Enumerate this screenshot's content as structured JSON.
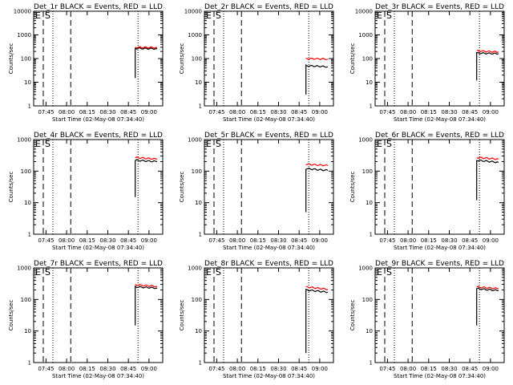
{
  "chart_data": [
    {
      "type": "line",
      "title": "Det_1r BLACK = Events, RED = LLD",
      "xlabel": "Start Time (02-May-08 07:34:40)",
      "ylabel": "Counts/sec",
      "scale": "log",
      "ylim": [
        1,
        10000
      ],
      "ytick_labels": [
        "1",
        "10",
        "100",
        "1000",
        "10000"
      ],
      "xlim": [
        "07:36",
        "09:10"
      ],
      "xtick_labels": [
        "07:45",
        "08:00",
        "08:15",
        "08:30",
        "08:45",
        "09:00"
      ],
      "markers": [
        {
          "label": "E",
          "time": "07:34:40",
          "style": "solid"
        },
        {
          "label": "S",
          "time": "07:43",
          "style": "dashed"
        }
      ],
      "vlines": [
        {
          "time": "07:50",
          "style": "dotted"
        },
        {
          "time": "08:03",
          "style": "dashed"
        },
        {
          "time": "08:52",
          "style": "dotted"
        }
      ],
      "series": [
        {
          "name": "BLACK = Events",
          "color": "#000000",
          "onset": "08:50",
          "values": [
            15,
            270,
            260
          ]
        },
        {
          "name": "RED = LLD",
          "color": "#ff0000",
          "values": [
            300,
            290
          ]
        }
      ]
    },
    {
      "type": "line",
      "title": "Det_2r BLACK = Events, RED = LLD",
      "xlabel": "Start Time (02-May-08 07:34:40)",
      "ylabel": "Counts/sec",
      "scale": "log",
      "ylim": [
        1,
        10000
      ],
      "ytick_labels": [
        "1",
        "10",
        "100",
        "1000",
        "10000"
      ],
      "xlim": [
        "07:36",
        "09:10"
      ],
      "xtick_labels": [
        "07:45",
        "08:00",
        "08:15",
        "08:30",
        "08:45",
        "09:00"
      ],
      "markers": [
        {
          "label": "E",
          "time": "07:34:40",
          "style": "solid"
        },
        {
          "label": "S",
          "time": "07:43",
          "style": "dashed"
        }
      ],
      "vlines": [
        {
          "time": "07:50",
          "style": "dotted"
        },
        {
          "time": "08:03",
          "style": "dashed"
        },
        {
          "time": "08:52",
          "style": "dotted"
        }
      ],
      "series": [
        {
          "name": "BLACK = Events",
          "color": "#000000",
          "onset": "08:50",
          "values": [
            3,
            50,
            45
          ]
        },
        {
          "name": "RED = LLD",
          "color": "#ff0000",
          "values": [
            100,
            95
          ]
        }
      ]
    },
    {
      "type": "line",
      "title": "Det_3r BLACK = Events, RED = LLD",
      "xlabel": "Start Time (02-May-08 07:34:40)",
      "ylabel": "Counts/sec",
      "scale": "log",
      "ylim": [
        1,
        10000
      ],
      "ytick_labels": [
        "1",
        "10",
        "100",
        "1000",
        "10000"
      ],
      "xlim": [
        "07:36",
        "09:10"
      ],
      "xtick_labels": [
        "07:45",
        "08:00",
        "08:15",
        "08:30",
        "08:45",
        "09:00"
      ],
      "markers": [
        {
          "label": "E",
          "time": "07:34:40",
          "style": "solid"
        },
        {
          "label": "S",
          "time": "07:43",
          "style": "dashed"
        }
      ],
      "vlines": [
        {
          "time": "07:50",
          "style": "dotted"
        },
        {
          "time": "08:03",
          "style": "dashed"
        },
        {
          "time": "08:52",
          "style": "dotted"
        }
      ],
      "series": [
        {
          "name": "BLACK = Events",
          "color": "#000000",
          "onset": "08:50",
          "values": [
            12,
            170,
            160
          ]
        },
        {
          "name": "RED = LLD",
          "color": "#ff0000",
          "values": [
            210,
            190
          ]
        }
      ]
    },
    {
      "type": "line",
      "title": "Det_4r BLACK = Events, RED = LLD",
      "xlabel": "Start Time (02-May-08 07:34:40)",
      "ylabel": "Counts/sec",
      "scale": "log",
      "ylim": [
        1,
        1000
      ],
      "ytick_labels": [
        "1",
        "10",
        "100",
        "1000"
      ],
      "xlim": [
        "07:36",
        "09:10"
      ],
      "xtick_labels": [
        "07:45",
        "08:00",
        "08:15",
        "08:30",
        "08:45",
        "09:00"
      ],
      "markers": [
        {
          "label": "E",
          "time": "07:34:40",
          "style": "solid"
        },
        {
          "label": "S",
          "time": "07:43",
          "style": "dashed"
        }
      ],
      "vlines": [
        {
          "time": "07:50",
          "style": "dotted"
        },
        {
          "time": "08:03",
          "style": "dashed"
        },
        {
          "time": "08:52",
          "style": "dotted"
        }
      ],
      "series": [
        {
          "name": "BLACK = Events",
          "color": "#000000",
          "onset": "08:50",
          "values": [
            15,
            220,
            200
          ]
        },
        {
          "name": "RED = LLD",
          "color": "#ff0000",
          "values": [
            270,
            240
          ]
        }
      ]
    },
    {
      "type": "line",
      "title": "Det_5r BLACK = Events, RED = LLD",
      "xlabel": "Start Time (02-May-08 07:34:40)",
      "ylabel": "Counts/sec",
      "scale": "log",
      "ylim": [
        1,
        1000
      ],
      "ytick_labels": [
        "1",
        "10",
        "100",
        "1000"
      ],
      "xlim": [
        "07:36",
        "09:10"
      ],
      "xtick_labels": [
        "07:45",
        "08:00",
        "08:15",
        "08:30",
        "08:45",
        "09:00"
      ],
      "markers": [
        {
          "label": "E",
          "time": "07:34:40",
          "style": "solid"
        },
        {
          "label": "S",
          "time": "07:43",
          "style": "dashed"
        }
      ],
      "vlines": [
        {
          "time": "07:50",
          "style": "dotted"
        },
        {
          "time": "08:03",
          "style": "dashed"
        },
        {
          "time": "08:52",
          "style": "dotted"
        }
      ],
      "series": [
        {
          "name": "BLACK = Events",
          "color": "#000000",
          "onset": "08:50",
          "values": [
            5,
            120,
            105
          ]
        },
        {
          "name": "RED = LLD",
          "color": "#ff0000",
          "values": [
            165,
            150
          ]
        }
      ]
    },
    {
      "type": "line",
      "title": "Det_6r BLACK = Events, RED = LLD",
      "xlabel": "Start Time (02-May-08 07:34:40)",
      "ylabel": "Counts/sec",
      "scale": "log",
      "ylim": [
        1,
        1000
      ],
      "ytick_labels": [
        "1",
        "10",
        "100",
        "1000"
      ],
      "xlim": [
        "07:36",
        "09:10"
      ],
      "xtick_labels": [
        "07:45",
        "08:00",
        "08:15",
        "08:30",
        "08:45",
        "09:00"
      ],
      "markers": [
        {
          "label": "E",
          "time": "07:34:40",
          "style": "solid"
        },
        {
          "label": "S",
          "time": "07:43",
          "style": "dashed"
        }
      ],
      "vlines": [
        {
          "time": "07:50",
          "style": "dotted"
        },
        {
          "time": "08:03",
          "style": "dashed"
        },
        {
          "time": "08:52",
          "style": "dotted"
        }
      ],
      "series": [
        {
          "name": "BLACK = Events",
          "color": "#000000",
          "onset": "08:50",
          "values": [
            12,
            220,
            190
          ]
        },
        {
          "name": "RED = LLD",
          "color": "#ff0000",
          "values": [
            270,
            240
          ]
        }
      ]
    },
    {
      "type": "line",
      "title": "Det_7r BLACK = Events, RED = LLD",
      "xlabel": "Start Time (02-May-08 07:34:40)",
      "ylabel": "Counts/sec",
      "scale": "log",
      "ylim": [
        1,
        1000
      ],
      "ytick_labels": [
        "1",
        "10",
        "100",
        "1000"
      ],
      "xlim": [
        "07:36",
        "09:10"
      ],
      "xtick_labels": [
        "07:45",
        "08:00",
        "08:15",
        "08:30",
        "08:45",
        "09:00"
      ],
      "markers": [
        {
          "label": "E",
          "time": "07:34:40",
          "style": "solid"
        },
        {
          "label": "S",
          "time": "07:43",
          "style": "dashed"
        }
      ],
      "vlines": [
        {
          "time": "07:50",
          "style": "dotted"
        },
        {
          "time": "08:03",
          "style": "dashed"
        },
        {
          "time": "08:52",
          "style": "dotted"
        }
      ],
      "series": [
        {
          "name": "BLACK = Events",
          "color": "#000000",
          "onset": "08:50",
          "values": [
            15,
            250,
            230
          ]
        },
        {
          "name": "RED = LLD",
          "color": "#ff0000",
          "values": [
            290,
            260
          ]
        }
      ]
    },
    {
      "type": "line",
      "title": "Det_8r BLACK = Events, RED = LLD",
      "xlabel": "Start Time (02-May-08 07:34:40)",
      "ylabel": "Counts/sec",
      "scale": "log",
      "ylim": [
        1,
        1000
      ],
      "ytick_labels": [
        "1",
        "10",
        "100",
        "1000"
      ],
      "xlim": [
        "07:36",
        "09:10"
      ],
      "xtick_labels": [
        "07:45",
        "08:00",
        "08:15",
        "08:30",
        "08:45",
        "09:00"
      ],
      "markers": [
        {
          "label": "E",
          "time": "07:34:40",
          "style": "solid"
        },
        {
          "label": "S",
          "time": "07:43",
          "style": "dashed"
        }
      ],
      "vlines": [
        {
          "time": "07:50",
          "style": "dotted"
        },
        {
          "time": "08:03",
          "style": "dashed"
        },
        {
          "time": "08:52",
          "style": "dotted"
        }
      ],
      "series": [
        {
          "name": "BLACK = Events",
          "color": "#000000",
          "onset": "08:50",
          "values": [
            2,
            200,
            170
          ]
        },
        {
          "name": "RED = LLD",
          "color": "#ff0000",
          "values": [
            250,
            210
          ]
        }
      ]
    },
    {
      "type": "line",
      "title": "Det_9r BLACK = Events, RED = LLD",
      "xlabel": "Start Time (02-May-08 07:34:40)",
      "ylabel": "Counts/sec",
      "scale": "log",
      "ylim": [
        1,
        1000
      ],
      "ytick_labels": [
        "1",
        "10",
        "100",
        "1000"
      ],
      "xlim": [
        "07:36",
        "09:10"
      ],
      "xtick_labels": [
        "07:45",
        "08:00",
        "08:15",
        "08:30",
        "08:45",
        "09:00"
      ],
      "markers": [
        {
          "label": "E",
          "time": "07:34:40",
          "style": "solid"
        },
        {
          "label": "S",
          "time": "07:43",
          "style": "dashed"
        }
      ],
      "vlines": [
        {
          "time": "07:50",
          "style": "dotted"
        },
        {
          "time": "08:03",
          "style": "dashed"
        },
        {
          "time": "08:52",
          "style": "dotted"
        }
      ],
      "series": [
        {
          "name": "BLACK = Events",
          "color": "#000000",
          "onset": "08:50",
          "values": [
            15,
            220,
            190
          ]
        },
        {
          "name": "RED = LLD",
          "color": "#ff0000",
          "values": [
            250,
            220
          ]
        }
      ]
    }
  ]
}
